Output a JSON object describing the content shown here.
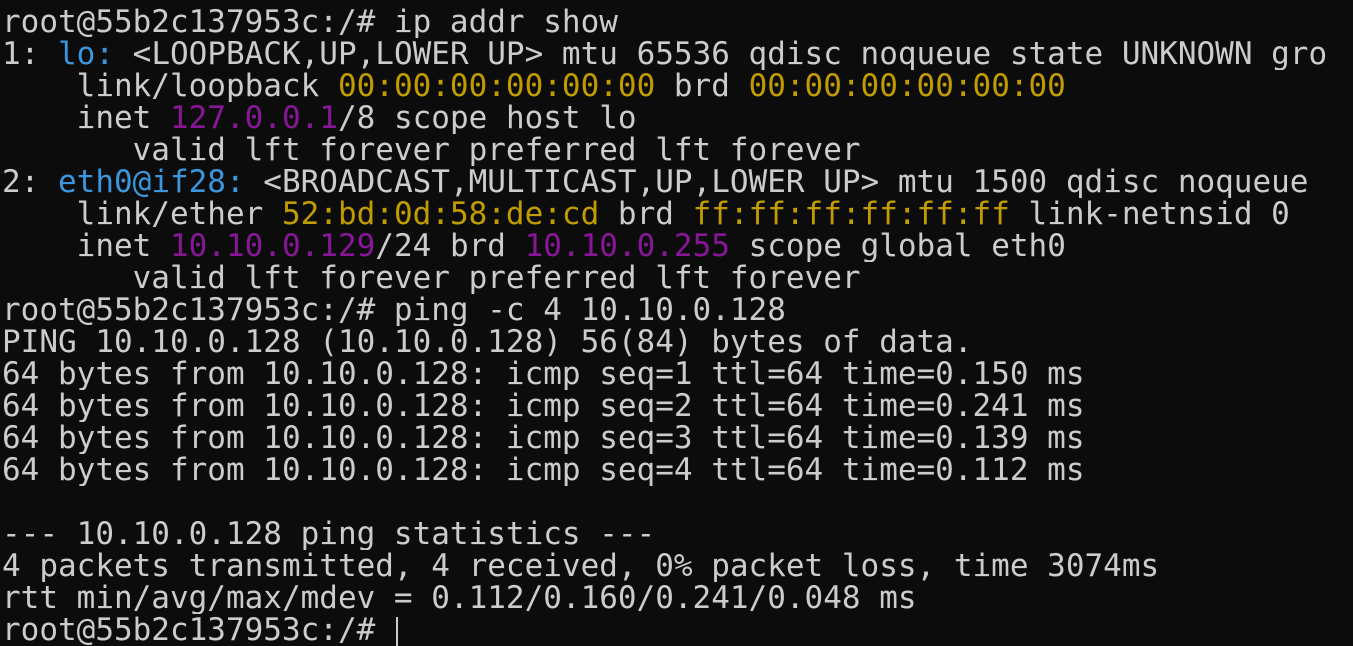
{
  "terminal": {
    "lines": [
      [
        {
          "text": "root@55b2c137953c:/# ip addr show"
        }
      ],
      [
        {
          "text": "1: "
        },
        {
          "text": "lo:",
          "color": "#3a96dd"
        },
        {
          "text": " <LOOPBACK,UP,LOWER_UP> mtu 65536 qdisc noqueue state UNKNOWN gro"
        }
      ],
      [
        {
          "text": "    link/loopback "
        },
        {
          "text": "00:00:00:00:00:00",
          "color": "#c19c00"
        },
        {
          "text": " brd "
        },
        {
          "text": "00:00:00:00:00:00",
          "color": "#c19c00"
        }
      ],
      [
        {
          "text": "    inet "
        },
        {
          "text": "127.0.0.1",
          "color": "#881798"
        },
        {
          "text": "/8 scope host lo"
        }
      ],
      [
        {
          "text": "       valid_lft forever preferred_lft forever"
        }
      ],
      [
        {
          "text": "2: "
        },
        {
          "text": "eth0@if28:",
          "color": "#3a96dd"
        },
        {
          "text": " <BROADCAST,MULTICAST,UP,LOWER_UP> mtu 1500 qdisc noqueue"
        }
      ],
      [
        {
          "text": "    link/ether "
        },
        {
          "text": "52:bd:0d:58:de:cd",
          "color": "#c19c00"
        },
        {
          "text": " brd "
        },
        {
          "text": "ff:ff:ff:ff:ff:ff",
          "color": "#c19c00"
        },
        {
          "text": " link-netnsid 0"
        }
      ],
      [
        {
          "text": "    inet "
        },
        {
          "text": "10.10.0.129",
          "color": "#881798"
        },
        {
          "text": "/24 brd "
        },
        {
          "text": "10.10.0.255",
          "color": "#881798"
        },
        {
          "text": " scope global eth0"
        }
      ],
      [
        {
          "text": "       valid_lft forever preferred_lft forever"
        }
      ],
      [
        {
          "text": "root@55b2c137953c:/# ping -c 4 10.10.0.128"
        }
      ],
      [
        {
          "text": "PING 10.10.0.128 (10.10.0.128) 56(84) bytes of data."
        }
      ],
      [
        {
          "text": "64 bytes from 10.10.0.128: icmp_seq=1 ttl=64 time=0.150 ms"
        }
      ],
      [
        {
          "text": "64 bytes from 10.10.0.128: icmp_seq=2 ttl=64 time=0.241 ms"
        }
      ],
      [
        {
          "text": "64 bytes from 10.10.0.128: icmp_seq=3 ttl=64 time=0.139 ms"
        }
      ],
      [
        {
          "text": "64 bytes from 10.10.0.128: icmp_seq=4 ttl=64 time=0.112 ms"
        }
      ],
      [],
      [
        {
          "text": "--- 10.10.0.128 ping statistics ---"
        }
      ],
      [
        {
          "text": "4 packets transmitted, 4 received, 0% packet loss, time 3074ms"
        }
      ],
      [
        {
          "text": "rtt min/avg/max/mdev = 0.112/0.160/0.241/0.048 ms"
        }
      ],
      [
        {
          "text": "root@55b2c137953c:/# "
        }
      ]
    ]
  }
}
